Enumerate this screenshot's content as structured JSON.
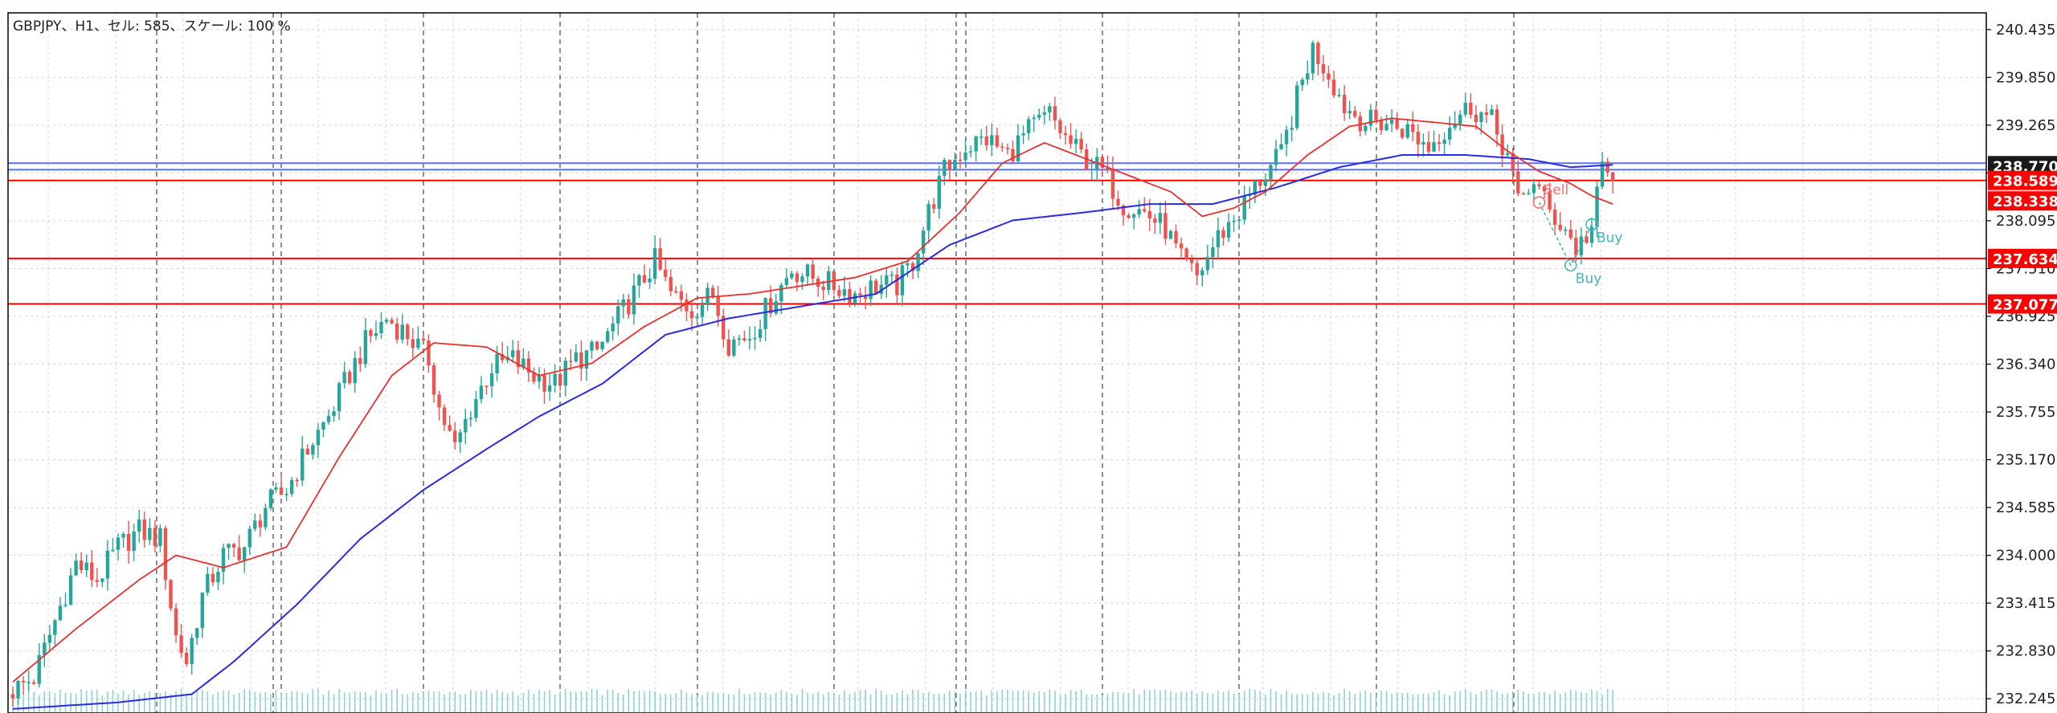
{
  "header": {
    "info": "GBPJPY、H1、セル: 585、スケール: 100 %"
  },
  "colors": {
    "background": "#ffffff",
    "frame": "#000000",
    "grid": "#d4d4d4",
    "bull_candle": "#26a69a",
    "bear_candle": "#ef5350",
    "ma_fast": "#e83030",
    "ma_slow": "#2a2ae0",
    "hline_blue": "#5b6ef5",
    "hline_red": "#ff0000",
    "tag_dark": "#1a1a1a",
    "tag_red": "#ff0000",
    "volume": "#8fd3d0",
    "trade_line": "#3fb7b7",
    "sell_label": "#ff6b6b",
    "buy_label": "#3fb7b7"
  },
  "chart_data": {
    "type": "candlestick",
    "symbol": "GBPJPY",
    "timeframe": "H1",
    "ylim": [
      232.07,
      240.64
    ],
    "y_ticks": [
      "240.435",
      "239.850",
      "239.265",
      "238.680",
      "238.095",
      "237.510",
      "236.925",
      "236.340",
      "235.755",
      "235.170",
      "234.585",
      "234.000",
      "233.415",
      "232.830",
      "232.245"
    ],
    "price_tags": [
      {
        "label": "238.770",
        "value": 238.77,
        "style": "dark"
      },
      {
        "label": "238.589",
        "value": 238.589,
        "style": "red"
      },
      {
        "label": "238.338",
        "value": 238.338,
        "style": "red"
      },
      {
        "label": "237.634",
        "value": 237.634,
        "style": "red"
      },
      {
        "label": "237.077",
        "value": 237.077,
        "style": "red"
      }
    ],
    "horizontal_lines": [
      {
        "value": 238.8,
        "color": "blue"
      },
      {
        "value": 238.72,
        "color": "blue"
      },
      {
        "value": 238.589,
        "color": "red"
      },
      {
        "value": 237.634,
        "color": "red"
      },
      {
        "value": 237.077,
        "color": "red"
      }
    ],
    "period_separators": 13,
    "close_path": [
      [
        0,
        232.35
      ],
      [
        4,
        232.5
      ],
      [
        8,
        233.2
      ],
      [
        12,
        233.9
      ],
      [
        16,
        233.7
      ],
      [
        20,
        234.1
      ],
      [
        24,
        234.3
      ],
      [
        28,
        234.2
      ],
      [
        31,
        233.0
      ],
      [
        33,
        232.7
      ],
      [
        36,
        233.5
      ],
      [
        40,
        234.0
      ],
      [
        44,
        234.1
      ],
      [
        48,
        234.6
      ],
      [
        52,
        234.8
      ],
      [
        56,
        235.3
      ],
      [
        60,
        235.7
      ],
      [
        63,
        236.1
      ],
      [
        67,
        236.6
      ],
      [
        71,
        236.9
      ],
      [
        75,
        236.7
      ],
      [
        79,
        236.4
      ],
      [
        81,
        235.8
      ],
      [
        84,
        235.3
      ],
      [
        87,
        235.8
      ],
      [
        91,
        236.3
      ],
      [
        95,
        236.4
      ],
      [
        99,
        236.2
      ],
      [
        103,
        236.1
      ],
      [
        107,
        236.4
      ],
      [
        111,
        236.5
      ],
      [
        115,
        236.9
      ],
      [
        119,
        237.3
      ],
      [
        122,
        237.6
      ],
      [
        125,
        237.2
      ],
      [
        129,
        237.0
      ],
      [
        133,
        237.2
      ],
      [
        136,
        236.6
      ],
      [
        140,
        236.7
      ],
      [
        144,
        237.1
      ],
      [
        148,
        237.5
      ],
      [
        152,
        237.4
      ],
      [
        156,
        237.3
      ],
      [
        160,
        237.2
      ],
      [
        164,
        237.3
      ],
      [
        168,
        237.3
      ],
      [
        171,
        237.6
      ],
      [
        174,
        238.2
      ],
      [
        177,
        238.7
      ],
      [
        181,
        239.0
      ],
      [
        185,
        239.1
      ],
      [
        189,
        238.9
      ],
      [
        193,
        239.2
      ],
      [
        197,
        239.4
      ],
      [
        200,
        239.1
      ],
      [
        203,
        238.9
      ],
      [
        207,
        238.7
      ],
      [
        211,
        238.3
      ],
      [
        215,
        238.2
      ],
      [
        219,
        238.0
      ],
      [
        222,
        237.6
      ],
      [
        225,
        237.4
      ],
      [
        229,
        237.9
      ],
      [
        233,
        238.2
      ],
      [
        237,
        238.6
      ],
      [
        241,
        238.9
      ],
      [
        244,
        239.6
      ],
      [
        247,
        240.2
      ],
      [
        250,
        239.9
      ],
      [
        253,
        239.5
      ],
      [
        257,
        239.3
      ],
      [
        261,
        239.3
      ],
      [
        265,
        239.2
      ],
      [
        269,
        239.0
      ],
      [
        273,
        239.3
      ],
      [
        277,
        239.5
      ],
      [
        281,
        239.3
      ],
      [
        284,
        238.9
      ],
      [
        286,
        238.3
      ],
      [
        289,
        238.6
      ],
      [
        292,
        238.2
      ],
      [
        295,
        238.0
      ],
      [
        297,
        237.75
      ],
      [
        300,
        238.0
      ],
      [
        302,
        238.75
      ],
      [
        304,
        238.6
      ]
    ],
    "ma_fast": [
      [
        0,
        232.45
      ],
      [
        12,
        233.1
      ],
      [
        24,
        233.7
      ],
      [
        31,
        234.0
      ],
      [
        40,
        233.85
      ],
      [
        52,
        234.1
      ],
      [
        62,
        235.2
      ],
      [
        72,
        236.2
      ],
      [
        80,
        236.6
      ],
      [
        90,
        236.55
      ],
      [
        100,
        236.2
      ],
      [
        110,
        236.35
      ],
      [
        120,
        236.8
      ],
      [
        130,
        237.15
      ],
      [
        140,
        237.2
      ],
      [
        150,
        237.3
      ],
      [
        160,
        237.4
      ],
      [
        170,
        237.6
      ],
      [
        180,
        238.2
      ],
      [
        188,
        238.8
      ],
      [
        196,
        239.05
      ],
      [
        204,
        238.85
      ],
      [
        212,
        238.65
      ],
      [
        220,
        238.45
      ],
      [
        226,
        238.15
      ],
      [
        232,
        238.25
      ],
      [
        238,
        238.45
      ],
      [
        246,
        238.9
      ],
      [
        254,
        239.25
      ],
      [
        262,
        239.35
      ],
      [
        270,
        239.3
      ],
      [
        278,
        239.25
      ],
      [
        284,
        238.95
      ],
      [
        290,
        238.7
      ],
      [
        296,
        238.55
      ],
      [
        300,
        238.4
      ],
      [
        304,
        238.3
      ]
    ],
    "ma_slow": [
      [
        0,
        232.12
      ],
      [
        20,
        232.2
      ],
      [
        34,
        232.3
      ],
      [
        42,
        232.7
      ],
      [
        54,
        233.4
      ],
      [
        66,
        234.2
      ],
      [
        78,
        234.8
      ],
      [
        90,
        235.3
      ],
      [
        100,
        235.7
      ],
      [
        112,
        236.1
      ],
      [
        124,
        236.7
      ],
      [
        136,
        236.9
      ],
      [
        150,
        237.05
      ],
      [
        164,
        237.2
      ],
      [
        178,
        237.8
      ],
      [
        190,
        238.1
      ],
      [
        204,
        238.2
      ],
      [
        216,
        238.3
      ],
      [
        228,
        238.3
      ],
      [
        240,
        238.5
      ],
      [
        252,
        238.75
      ],
      [
        264,
        238.9
      ],
      [
        276,
        238.9
      ],
      [
        288,
        238.85
      ],
      [
        296,
        238.75
      ],
      [
        304,
        238.78
      ]
    ],
    "trades": [
      {
        "type": "sell",
        "label": "Sell",
        "value": 238.32
      },
      {
        "type": "buy",
        "label": "Buy",
        "value": 237.55
      },
      {
        "type": "buy",
        "label": "Buy",
        "value": 238.05
      }
    ]
  }
}
